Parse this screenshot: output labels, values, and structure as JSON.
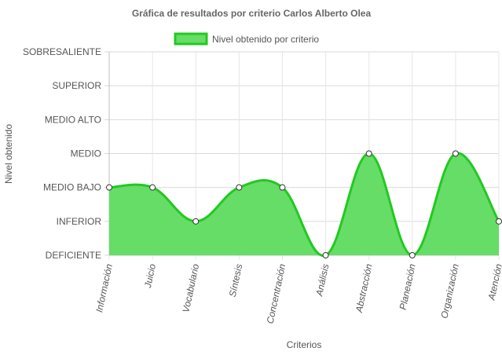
{
  "chart_data": {
    "type": "area",
    "title": "Gráfica de resultados por criterio Carlos Alberto Olea",
    "xlabel": "Criterios",
    "ylabel": "Nivel obtenido",
    "y_levels": [
      "DEFICIENTE",
      "INFERIOR",
      "MEDIO BAJO",
      "MEDIO",
      "MEDIO ALTO",
      "SUPERIOR",
      "SOBRESALIENTE"
    ],
    "ylim": [
      0,
      6
    ],
    "categories": [
      "Información",
      "Juicio",
      "Vocabulario",
      "Síntesis",
      "Concentración",
      "Análisis",
      "Abstracción",
      "Planeación",
      "Organización",
      "Atención"
    ],
    "series": [
      {
        "name": "Nivel obtenido por criterio",
        "values": [
          2,
          2,
          1,
          2,
          2,
          0,
          3,
          0,
          3,
          1
        ],
        "fill_color": "#66dd66",
        "line_color": "#22c922"
      }
    ],
    "legend_position": "top",
    "grid": true
  }
}
